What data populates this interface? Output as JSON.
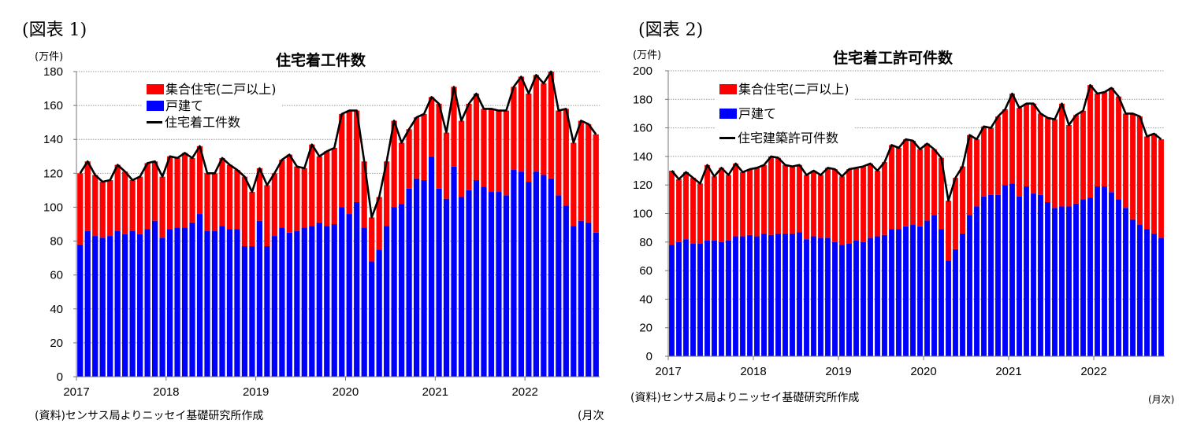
{
  "chart_data": [
    {
      "figure_label": "(図表 1)",
      "type": "bar",
      "stacked": true,
      "title": "住宅着工件数",
      "ylabel": "(万件)",
      "xlabel": "(月次",
      "source": "(資料)センサス局よりニッセイ基礎研究所作成",
      "ylim": [
        0,
        180
      ],
      "yticks": [
        "0",
        "20",
        "40",
        "60",
        "80",
        "100",
        "120",
        "140",
        "160",
        "180"
      ],
      "xticks": [
        "2017",
        "2018",
        "2019",
        "2020",
        "2021",
        "2022"
      ],
      "x_start": "2017-01",
      "x_end": "2022-10",
      "grid": true,
      "legend": "top-left",
      "series": [
        {
          "name": "集合住宅(二戸以上)",
          "color": "#ff0000",
          "kind": "bar",
          "values": [
            42,
            41,
            36,
            33,
            33,
            39,
            37,
            30,
            34,
            39,
            35,
            36,
            43,
            41,
            44,
            38,
            40,
            34,
            34,
            40,
            38,
            35,
            41,
            32,
            31,
            36,
            37,
            40,
            46,
            38,
            35,
            48,
            39,
            44,
            45,
            55,
            61,
            54,
            39,
            26,
            31,
            38,
            51,
            36,
            35,
            36,
            39,
            35,
            50,
            39,
            47,
            45,
            51,
            51,
            46,
            49,
            48,
            50,
            49,
            56,
            52,
            57,
            54,
            63,
            50,
            57,
            49,
            59,
            58,
            58
          ]
        },
        {
          "name": "戸建て",
          "color": "#0000ff",
          "kind": "bar",
          "values": [
            78,
            86,
            83,
            82,
            83,
            86,
            84,
            86,
            84,
            87,
            92,
            82,
            87,
            88,
            88,
            91,
            96,
            86,
            86,
            89,
            87,
            87,
            77,
            77,
            92,
            77,
            83,
            88,
            85,
            86,
            88,
            89,
            91,
            89,
            90,
            100,
            96,
            103,
            88,
            68,
            75,
            89,
            100,
            102,
            111,
            117,
            116,
            130,
            111,
            105,
            124,
            106,
            110,
            116,
            112,
            109,
            109,
            107,
            122,
            121,
            115,
            121,
            119,
            117,
            107,
            101,
            89,
            92,
            91,
            85
          ]
        },
        {
          "name": "住宅着工件数",
          "color": "#000000",
          "kind": "line",
          "values": [
            120,
            127,
            119,
            115,
            116,
            125,
            121,
            116,
            118,
            126,
            127,
            118,
            130,
            129,
            132,
            129,
            136,
            120,
            120,
            129,
            125,
            122,
            118,
            109,
            123,
            113,
            120,
            128,
            131,
            124,
            123,
            137,
            130,
            133,
            135,
            155,
            157,
            157,
            127,
            94,
            106,
            127,
            151,
            138,
            146,
            153,
            155,
            165,
            161,
            144,
            171,
            151,
            161,
            167,
            158,
            158,
            157,
            157,
            171,
            177,
            167,
            178,
            173,
            180,
            157,
            158,
            138,
            151,
            149,
            143
          ]
        }
      ]
    },
    {
      "figure_label": "(図表 2)",
      "type": "bar",
      "stacked": true,
      "title": "住宅着工許可件数",
      "ylabel": "(万件)",
      "xlabel": "(月次)",
      "source": "(資料)センサス局よりニッセイ基礎研究所作成",
      "ylim": [
        0,
        200
      ],
      "yticks": [
        "0",
        "20",
        "40",
        "60",
        "80",
        "100",
        "120",
        "140",
        "160",
        "180",
        "200"
      ],
      "xticks": [
        "2017",
        "2018",
        "2019",
        "2020",
        "2021",
        "2022"
      ],
      "x_start": "2017-01",
      "x_end": "2022-10",
      "grid": true,
      "legend": "top-left",
      "series": [
        {
          "name": "集合住宅(二戸以上)",
          "color": "#ff0000",
          "kind": "bar",
          "values": [
            52,
            44,
            47,
            46,
            42,
            53,
            45,
            52,
            46,
            51,
            45,
            46,
            48,
            48,
            55,
            53,
            48,
            47,
            47,
            45,
            46,
            44,
            49,
            51,
            48,
            52,
            51,
            53,
            52,
            46,
            51,
            59,
            57,
            61,
            59,
            54,
            54,
            46,
            50,
            42,
            50,
            47,
            56,
            47,
            49,
            47,
            55,
            53,
            63,
            62,
            58,
            63,
            57,
            59,
            62,
            72,
            57,
            62,
            62,
            79,
            65,
            66,
            73,
            72,
            66,
            74,
            76,
            65,
            70,
            69
          ]
        },
        {
          "name": "戸建て",
          "color": "#0000ff",
          "kind": "bar",
          "values": [
            78,
            80,
            82,
            79,
            79,
            81,
            81,
            80,
            81,
            84,
            84,
            85,
            84,
            86,
            85,
            86,
            86,
            86,
            87,
            82,
            84,
            83,
            83,
            80,
            78,
            79,
            81,
            80,
            83,
            84,
            85,
            89,
            89,
            91,
            92,
            91,
            95,
            99,
            89,
            67,
            75,
            86,
            99,
            105,
            112,
            113,
            113,
            120,
            121,
            112,
            119,
            114,
            113,
            108,
            104,
            105,
            105,
            107,
            110,
            111,
            119,
            119,
            115,
            110,
            104,
            96,
            92,
            89,
            86,
            83
          ]
        },
        {
          "name": "住宅建築許可件数",
          "color": "#000000",
          "kind": "line",
          "values": [
            130,
            124,
            129,
            125,
            121,
            134,
            126,
            132,
            127,
            135,
            129,
            131,
            132,
            134,
            140,
            139,
            134,
            133,
            134,
            127,
            130,
            127,
            132,
            131,
            126,
            131,
            132,
            133,
            135,
            130,
            136,
            148,
            146,
            152,
            151,
            145,
            149,
            145,
            139,
            109,
            125,
            133,
            155,
            152,
            161,
            160,
            168,
            173,
            184,
            174,
            177,
            177,
            170,
            167,
            166,
            177,
            162,
            169,
            172,
            190,
            184,
            185,
            188,
            182,
            170,
            170,
            168,
            154,
            156,
            152
          ]
        }
      ]
    }
  ]
}
